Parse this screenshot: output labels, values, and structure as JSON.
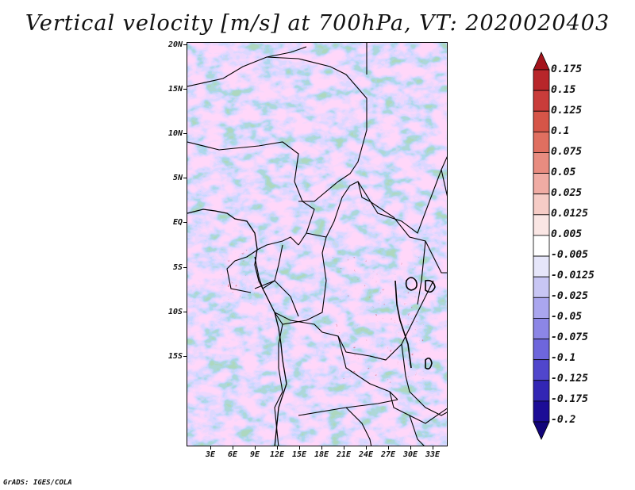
{
  "title": "Vertical velocity [m/s] at 700hPa, VT: 2020020403",
  "credit": "GrADS: IGES/COLA",
  "map": {
    "lat_labels": [
      "20N",
      "15N",
      "10N",
      "5N",
      "EQ",
      "5S",
      "10S",
      "15S"
    ],
    "lon_labels": [
      "3E",
      "6E",
      "9E",
      "12E",
      "15E",
      "18E",
      "21E",
      "24E",
      "27E",
      "30E",
      "33E"
    ],
    "region": "Central Africa"
  },
  "colorbar": {
    "levels": [
      "0.175",
      "0.15",
      "0.125",
      "0.1",
      "0.075",
      "0.05",
      "0.025",
      "0.0125",
      "0.005",
      "-0.005",
      "-0.0125",
      "-0.025",
      "-0.05",
      "-0.075",
      "-0.1",
      "-0.125",
      "-0.175",
      "-0.2"
    ],
    "colors": [
      "#a4141c",
      "#b8262a",
      "#c93c3a",
      "#d65548",
      "#e06f60",
      "#e88c80",
      "#f0aca4",
      "#f6ccc6",
      "#fae6e4",
      "#ffffff",
      "#e6e6fa",
      "#c8c6f4",
      "#aaa6ee",
      "#8c86e6",
      "#6e66dc",
      "#5046cc",
      "#3226b4",
      "#1c0c96",
      "#12047a"
    ]
  }
}
